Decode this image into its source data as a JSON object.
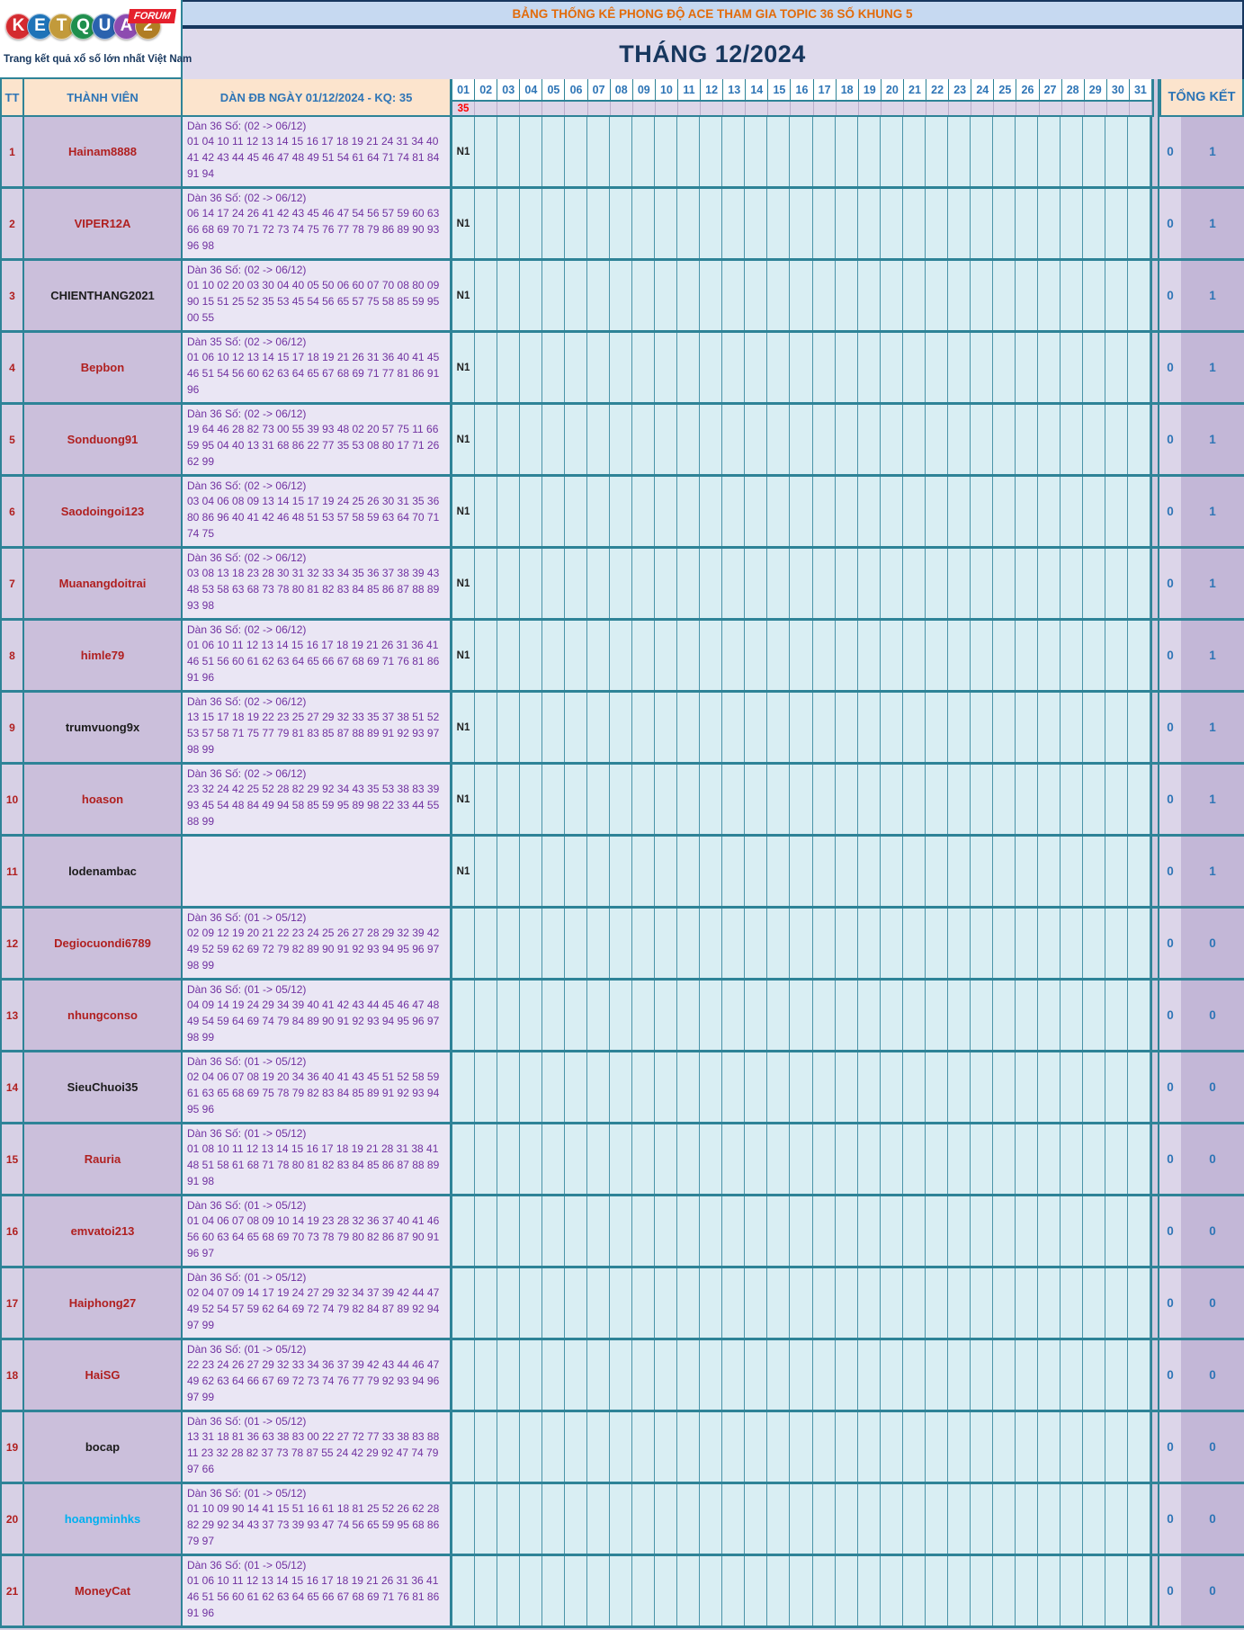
{
  "logo": {
    "letters": [
      {
        "ch": "K",
        "color": "#d42a2f"
      },
      {
        "ch": "E",
        "color": "#1e73b8"
      },
      {
        "ch": "T",
        "color": "#c29a3b"
      },
      {
        "ch": "Q",
        "color": "#1f8f4d"
      },
      {
        "ch": "U",
        "color": "#2a62ae"
      },
      {
        "ch": "A",
        "color": "#8d4bb0"
      },
      {
        "ch": "2",
        "color": "#b07d23"
      }
    ],
    "forum_badge": "FORUM",
    "tagline": "Trang kết quả xổ số lớn nhất Việt Nam"
  },
  "header": {
    "topic_title": "BẢNG THỐNG KÊ PHONG ĐỘ ACE THAM GIA TOPIC 36 SỐ KHUNG 5",
    "month_title": "THÁNG 12/2024"
  },
  "table": {
    "col_tt": "TT",
    "col_member": "THÀNH VIÊN",
    "col_dan": "DÀN ĐB NGÀY 01/12/2024 - KQ: 35",
    "col_total": "TỔNG KẾT",
    "days": [
      "01",
      "02",
      "03",
      "04",
      "05",
      "06",
      "07",
      "08",
      "09",
      "10",
      "11",
      "12",
      "13",
      "14",
      "15",
      "16",
      "17",
      "18",
      "19",
      "20",
      "21",
      "22",
      "23",
      "24",
      "25",
      "26",
      "27",
      "28",
      "29",
      "30",
      "31"
    ],
    "result_day01": "35",
    "colors": {
      "member_red": "#b02020",
      "member_black": "#1c1c1c",
      "member_blue": "#00b0f0",
      "numbers_purple": "#7030a0",
      "result_red": "#fe0000",
      "header_blue": "#2e75b6",
      "border_teal": "#2e8397",
      "topic_orange": "#e26b0a",
      "navy": "#17375e"
    },
    "rows": [
      {
        "tt": "1",
        "member": "Hainam8888",
        "member_color": "#b02020",
        "dan_title": "Dàn 36 Số: (02 -> 06/12)",
        "dan_lines": [
          "01 04 10 11 12 13 14 15 16 17 18 19 21 24 31 34 40",
          "41 42 43 44 45 46 47 48 49 51 54 61 64 71 74 81 84",
          "91 94"
        ],
        "day01": "N1",
        "total_left": "0",
        "total_right": "1"
      },
      {
        "tt": "2",
        "member": "VIPER12A",
        "member_color": "#b02020",
        "dan_title": "Dàn 36 Số: (02 -> 06/12)",
        "dan_lines": [
          "06 14 17 24 26 41 42 43 45 46 47 54 56 57 59 60 63",
          "66 68 69 70 71 72 73 74 75 76 77 78 79 86 89 90 93",
          "96 98"
        ],
        "day01": "N1",
        "total_left": "0",
        "total_right": "1"
      },
      {
        "tt": "3",
        "member": "CHIENTHANG2021",
        "member_color": "#1c1c1c",
        "dan_title": "Dàn 36 Số: (02 -> 06/12)",
        "dan_lines": [
          "01 10 02 20 03 30 04 40 05 50 06 60 07 70 08 80 09",
          "90 15 51 25 52 35 53 45 54 56 65 57 75 58 85 59 95",
          "00 55"
        ],
        "day01": "N1",
        "total_left": "0",
        "total_right": "1"
      },
      {
        "tt": "4",
        "member": "Bepbon",
        "member_color": "#b02020",
        "dan_title": "Dàn 35 Số: (02 -> 06/12)",
        "dan_lines": [
          "01 06 10 12 13 14 15 17 18 19 21 26 31 36 40 41 45",
          "46 51 54 56 60 62 63 64 65 67 68 69 71 77 81 86 91",
          "96"
        ],
        "day01": "N1",
        "total_left": "0",
        "total_right": "1"
      },
      {
        "tt": "5",
        "member": "Sonduong91",
        "member_color": "#b02020",
        "dan_title": "Dàn 36 Số: (02 -> 06/12)",
        "dan_lines": [
          "19 64 46 28 82 73 00 55 39 93 48 02 20 57 75 11 66",
          "59 95 04 40 13 31 68 86 22 77 35 53 08 80 17 71 26",
          "62 99"
        ],
        "day01": "N1",
        "total_left": "0",
        "total_right": "1"
      },
      {
        "tt": "6",
        "member": "Saodoingoi123",
        "member_color": "#b02020",
        "dan_title": "Dàn 36 Số: (02 -> 06/12)",
        "dan_lines": [
          "03 04 06 08 09 13 14 15 17 19 24 25 26 30 31 35 36",
          "80 86 96 40 41 42 46 48 51 53 57 58 59 63 64 70 71",
          "74 75"
        ],
        "day01": "N1",
        "total_left": "0",
        "total_right": "1"
      },
      {
        "tt": "7",
        "member": "Muanangdoitrai",
        "member_color": "#b02020",
        "dan_title": "Dàn 36 Số: (02 -> 06/12)",
        "dan_lines": [
          "03 08 13 18 23 28 30 31 32 33 34 35 36 37 38 39 43",
          "48 53 58 63 68 73 78 80 81 82 83 84 85 86 87 88 89",
          "93 98"
        ],
        "day01": "N1",
        "total_left": "0",
        "total_right": "1"
      },
      {
        "tt": "8",
        "member": "himle79",
        "member_color": "#b02020",
        "dan_title": "Dàn 36 Số: (02 -> 06/12)",
        "dan_lines": [
          "01 06 10 11 12 13 14 15 16 17 18 19 21 26 31 36 41",
          "46 51 56 60 61 62 63 64 65 66 67 68 69 71 76 81 86",
          "91 96"
        ],
        "day01": "N1",
        "total_left": "0",
        "total_right": "1"
      },
      {
        "tt": "9",
        "member": "trumvuong9x",
        "member_color": "#1c1c1c",
        "dan_title": "Dàn 36 Số: (02 -> 06/12)",
        "dan_lines": [
          "13 15 17 18 19 22 23 25 27 29 32 33 35 37 38 51 52",
          "53 57 58 71 75 77 79 81 83 85 87 88 89 91 92 93 97",
          "98 99"
        ],
        "day01": "N1",
        "total_left": "0",
        "total_right": "1"
      },
      {
        "tt": "10",
        "member": "hoason",
        "member_color": "#b02020",
        "dan_title": "Dàn 36 Số: (02 -> 06/12)",
        "dan_lines": [
          "23 32 24 42 25 52 28 82 29 92 34 43 35 53 38 83 39",
          "93 45 54 48 84 49 94 58 85 59 95 89 98 22 33 44 55",
          "88 99"
        ],
        "day01": "N1",
        "total_left": "0",
        "total_right": "1"
      },
      {
        "tt": "11",
        "member": "lodenambac",
        "member_color": "#1c1c1c",
        "dan_title": "",
        "dan_lines": [],
        "day01": "N1",
        "total_left": "0",
        "total_right": "1"
      },
      {
        "tt": "12",
        "member": "Degiocuondi6789",
        "member_color": "#b02020",
        "dan_title": "Dàn 36 Số: (01 -> 05/12)",
        "dan_lines": [
          "02 09 12 19 20 21 22 23 24 25 26 27 28 29 32 39 42",
          "49 52 59 62 69 72 79 82 89 90 91 92 93 94 95 96 97",
          "98 99"
        ],
        "day01": "",
        "total_left": "0",
        "total_right": "0"
      },
      {
        "tt": "13",
        "member": "nhungconso",
        "member_color": "#b02020",
        "dan_title": "Dàn 36 Số: (01 -> 05/12)",
        "dan_lines": [
          "04 09 14 19 24 29 34 39 40 41 42 43 44 45 46 47 48",
          "49 54 59 64 69 74 79 84 89 90 91 92 93 94 95 96 97",
          "98 99"
        ],
        "day01": "",
        "total_left": "0",
        "total_right": "0"
      },
      {
        "tt": "14",
        "member": "SieuChuoi35",
        "member_color": "#1c1c1c",
        "dan_title": "Dàn 36 Số: (01 -> 05/12)",
        "dan_lines": [
          "02 04 06 07 08 19 20 34 36 40 41 43 45 51 52 58 59",
          "61 63 65 68 69 75 78 79 82 83 84 85 89 91 92 93 94",
          "95 96"
        ],
        "day01": "",
        "total_left": "0",
        "total_right": "0"
      },
      {
        "tt": "15",
        "member": "Rauria",
        "member_color": "#b02020",
        "dan_title": "Dàn 36 Số: (01 -> 05/12)",
        "dan_lines": [
          "01 08 10 11 12 13 14 15 16 17 18 19 21 28 31 38 41",
          "48 51 58 61 68 71 78 80 81 82 83 84 85 86 87 88 89",
          "91 98"
        ],
        "day01": "",
        "total_left": "0",
        "total_right": "0"
      },
      {
        "tt": "16",
        "member": "emvatoi213",
        "member_color": "#b02020",
        "dan_title": "Dàn 36 Số: (01 -> 05/12)",
        "dan_lines": [
          "01 04 06 07 08 09 10 14 19 23 28 32 36 37 40 41 46",
          "56 60 63 64 65 68 69 70 73 78 79 80 82 86 87 90 91",
          "96 97"
        ],
        "day01": "",
        "total_left": "0",
        "total_right": "0"
      },
      {
        "tt": "17",
        "member": "Haiphong27",
        "member_color": "#b02020",
        "dan_title": "Dàn 36 Số: (01 -> 05/12)",
        "dan_lines": [
          "02 04 07 09 14 17 19 24 27 29 32 34 37 39 42 44 47",
          "49 52 54 57 59 62 64 69 72 74 79 82 84 87 89 92 94",
          "97 99"
        ],
        "day01": "",
        "total_left": "0",
        "total_right": "0"
      },
      {
        "tt": "18",
        "member": "HaiSG",
        "member_color": "#b02020",
        "dan_title": "Dàn 36 Số: (01 -> 05/12)",
        "dan_lines": [
          "22 23 24 26 27 29 32 33 34 36 37 39 42 43 44 46 47",
          "49 62 63 64 66 67 69 72 73 74 76 77 79 92 93 94 96",
          "97 99"
        ],
        "day01": "",
        "total_left": "0",
        "total_right": "0"
      },
      {
        "tt": "19",
        "member": "bocap",
        "member_color": "#1c1c1c",
        "dan_title": "Dàn 36 Số: (01 -> 05/12)",
        "dan_lines": [
          "13 31 18 81 36 63 38 83 00 22 27 72 77 33 38 83 88",
          "11 23 32 28 82 37 73 78 87 55 24 42 29 92 47 74 79",
          "97 66"
        ],
        "day01": "",
        "total_left": "0",
        "total_right": "0"
      },
      {
        "tt": "20",
        "member": "hoangminhks",
        "member_color": "#00b0f0",
        "dan_title": "Dàn 36 Số: (01 -> 05/12)",
        "dan_lines": [
          "01 10 09 90 14 41 15 51 16 61 18 81 25 52 26 62 28",
          "82 29 92 34 43 37 73 39 93 47 74 56 65 59 95 68 86",
          "79 97"
        ],
        "day01": "",
        "total_left": "0",
        "total_right": "0"
      },
      {
        "tt": "21",
        "member": "MoneyCat",
        "member_color": "#b02020",
        "dan_title": "Dàn 36 Số: (01 -> 05/12)",
        "dan_lines": [
          "01 06 10 11 12 13 14 15 16 17 18 19 21 26 31 36 41",
          "46 51 56 60 61 62 63 64 65 66 67 68 69 71 76 81 86",
          "91 96"
        ],
        "day01": "",
        "total_left": "0",
        "total_right": "0"
      }
    ]
  }
}
